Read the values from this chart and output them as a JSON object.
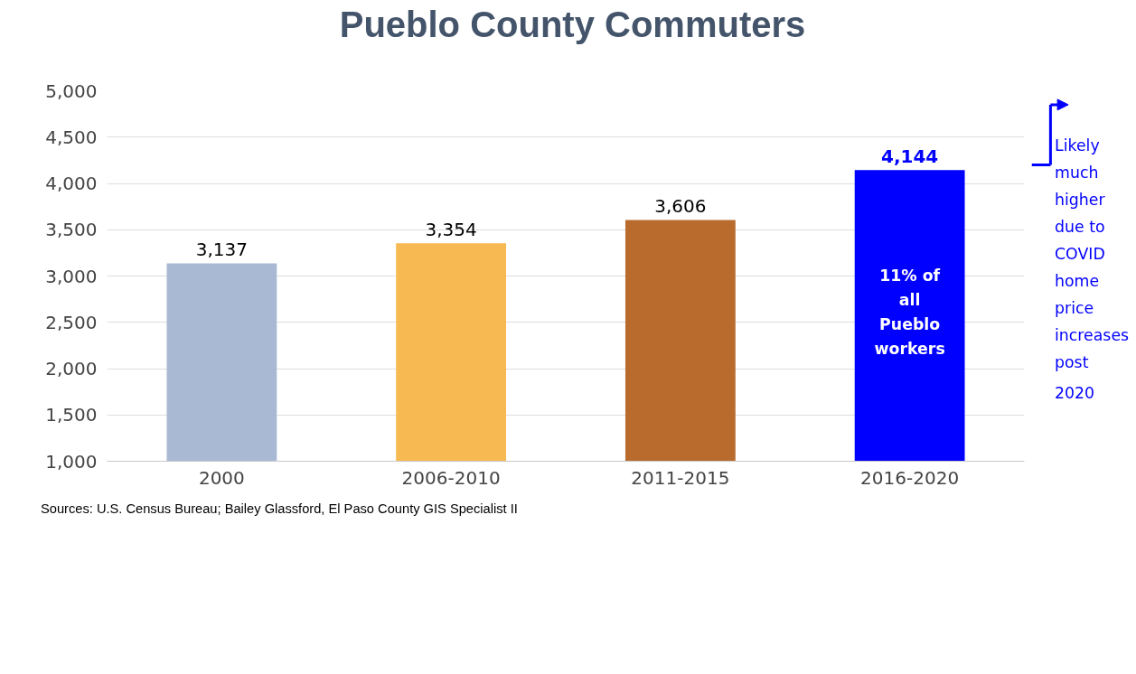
{
  "chart_data": {
    "type": "bar",
    "title": "Pueblo County Commuters",
    "categories": [
      "2000",
      "2006-2010",
      "2011-2015",
      "2016-2020"
    ],
    "values": [
      3137,
      3354,
      3606,
      4144
    ],
    "colors": [
      "#aab9d3",
      "#f7b952",
      "#b86b2d",
      "#0000ff"
    ],
    "ylim": [
      1000,
      5000
    ],
    "yticks": [
      {
        "value": 1000,
        "label": "1,000"
      },
      {
        "value": 1500,
        "label": "1,500"
      },
      {
        "value": 2000,
        "label": "2,000"
      },
      {
        "value": 2500,
        "label": "2,500"
      },
      {
        "value": 3000,
        "label": "3,000"
      },
      {
        "value": 3500,
        "label": "3,500"
      },
      {
        "value": 4000,
        "label": "4,000"
      },
      {
        "value": 4500,
        "label": "4,500"
      },
      {
        "value": 5000,
        "label": "5,000"
      }
    ],
    "grid": "y",
    "value_labels": [
      "3,137",
      "3,354",
      "3,606",
      "4,144"
    ],
    "annotations": [
      "11% of all Pueblo workers",
      "Likely much higher due to COVID home price increases post 2020",
      "Sources: U.S. Census Bureau; Bailey Glassford, El Paso County GIS Specialist II"
    ]
  }
}
